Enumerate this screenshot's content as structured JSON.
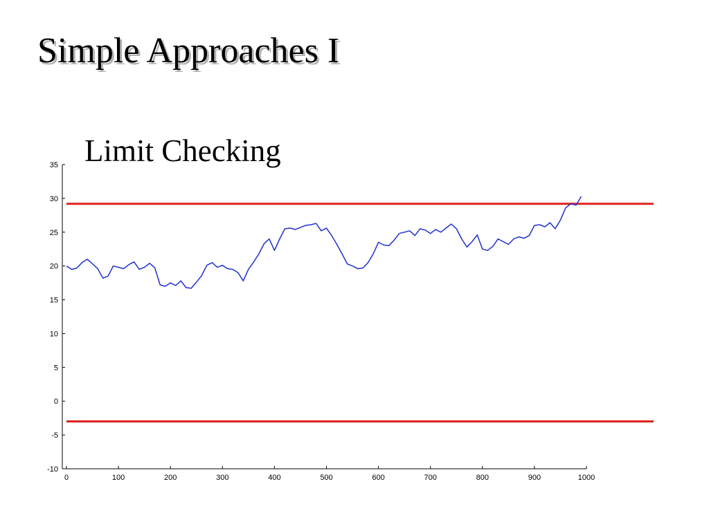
{
  "slide": {
    "title": "Simple Approaches I"
  },
  "chart_data": {
    "type": "line",
    "title": "Limit Checking",
    "xlabel": "",
    "ylabel": "",
    "xlim": [
      0,
      1000
    ],
    "ylim": [
      -10,
      35
    ],
    "x_ticks": [
      0,
      100,
      200,
      300,
      400,
      500,
      600,
      700,
      800,
      900,
      1000
    ],
    "y_ticks": [
      35,
      30,
      25,
      20,
      15,
      10,
      5,
      0,
      -5,
      -10
    ],
    "grid": false,
    "legend": "none",
    "series": [
      {
        "color": "#1f2fd0",
        "x": [
          0,
          10,
          20,
          30,
          40,
          50,
          60,
          70,
          80,
          90,
          100,
          110,
          120,
          130,
          140,
          150,
          160,
          170,
          180,
          190,
          200,
          210,
          220,
          230,
          240,
          250,
          260,
          270,
          280,
          290,
          300,
          310,
          320,
          330,
          340,
          350,
          360,
          370,
          380,
          390,
          400,
          410,
          420,
          430,
          440,
          450,
          460,
          470,
          480,
          490,
          500,
          510,
          520,
          530,
          540,
          550,
          560,
          570,
          580,
          590,
          600,
          610,
          620,
          630,
          640,
          650,
          660,
          670,
          680,
          690,
          700,
          710,
          720,
          730,
          740,
          750,
          760,
          770,
          780,
          790,
          800,
          810,
          820,
          830,
          840,
          850,
          860,
          870,
          880,
          890,
          900,
          910,
          920,
          930,
          940,
          950,
          960,
          970,
          980,
          990
        ],
        "y": [
          20.0,
          19.5,
          19.7,
          20.5,
          21.0,
          20.3,
          19.6,
          18.2,
          18.5,
          20.0,
          19.8,
          19.6,
          20.2,
          20.6,
          19.5,
          19.8,
          20.4,
          19.7,
          17.2,
          17.0,
          17.5,
          17.1,
          17.8,
          16.8,
          16.7,
          17.6,
          18.6,
          20.1,
          20.5,
          19.8,
          20.1,
          19.6,
          19.5,
          19.0,
          17.8,
          19.5,
          20.6,
          21.8,
          23.3,
          24.0,
          22.3,
          24.0,
          25.5,
          25.6,
          25.4,
          25.7,
          26.0,
          26.1,
          26.3,
          25.2,
          25.6,
          24.5,
          23.2,
          21.8,
          20.3,
          20.0,
          19.6,
          19.7,
          20.5,
          21.8,
          23.5,
          23.1,
          23.0,
          23.8,
          24.8,
          25.0,
          25.2,
          24.5,
          25.5,
          25.3,
          24.8,
          25.4,
          25.0,
          25.6,
          26.2,
          25.5,
          24.0,
          22.8,
          23.6,
          24.6,
          22.5,
          22.3,
          22.9,
          24.0,
          23.6,
          23.2,
          24.0,
          24.3,
          24.1,
          24.5,
          26.0,
          26.1,
          25.8,
          26.4,
          25.5,
          26.8,
          28.6,
          29.2,
          29.0,
          30.3
        ]
      }
    ],
    "thresholds": [
      {
        "y": 29.2,
        "color": "#e0201c"
      },
      {
        "y": -3.0,
        "color": "#e0201c"
      }
    ]
  }
}
